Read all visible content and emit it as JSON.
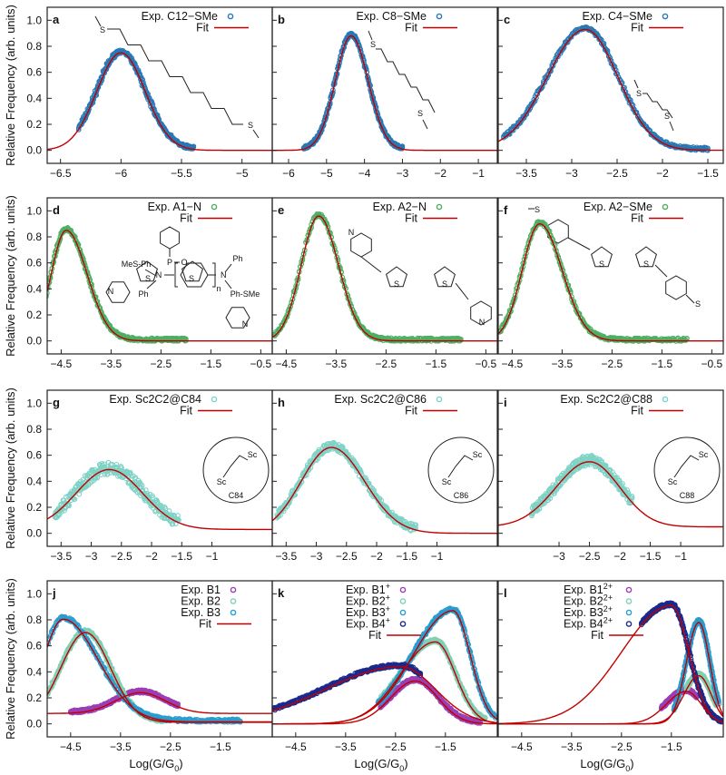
{
  "figure": {
    "ylabel": "Relative Frequency (arb. units)",
    "xlabel_main": "Log(G/G",
    "xlabel_sub": "0",
    "xlabel_end": ")",
    "yticks": [
      0.0,
      0.2,
      0.4,
      0.6,
      0.8,
      1.0
    ],
    "ytick_labels": [
      "0.0",
      "0.2",
      "0.4",
      "0.6",
      "0.8",
      "1.0"
    ],
    "ylim": [
      -0.1,
      1.1
    ],
    "fit_label": "Fit",
    "fit_color": "#c00000"
  },
  "molecules": {
    "a": [
      "S",
      "S"
    ],
    "b": [
      "S",
      "S"
    ],
    "c": [
      "S",
      "S"
    ],
    "d": [
      "P",
      "O",
      "S",
      "S",
      "N",
      "N"
    ],
    "e": [
      "N",
      "S",
      "S",
      "N"
    ],
    "f": [
      "S",
      "S",
      "S",
      "S"
    ],
    "g": [
      "Sc",
      "Sc",
      "C84"
    ],
    "h": [
      "Sc",
      "Sc",
      "C86"
    ],
    "i": [
      "Sc",
      "Sc",
      "C88"
    ],
    "j": [
      "MeS-Ph",
      "N",
      "Ph",
      "n",
      "N",
      "Ph",
      "Ph-SMe"
    ]
  },
  "chart_data": [
    {
      "panel": "a",
      "type": "scatter",
      "xlim": [
        -6.61,
        -4.75
      ],
      "xticks": [
        -6.5,
        -6,
        -5.5,
        -5
      ],
      "xtick_labels": [
        "−6.5",
        "−6",
        "−5.5",
        "−5"
      ],
      "series": [
        {
          "name": "Exp. C12−SMe",
          "sup": "",
          "color": "#2878b5",
          "A": 0.75,
          "mu": -6.0,
          "sL": 0.2,
          "sR": 0.2,
          "off": 0.0,
          "data_range": [
            -6.35,
            -5.4
          ]
        }
      ]
    },
    {
      "panel": "b",
      "type": "scatter",
      "xlim": [
        -6.43,
        -0.5
      ],
      "xticks": [
        -6,
        -5,
        -4,
        -3,
        -2,
        -1
      ],
      "xtick_labels": [
        "−6",
        "−5",
        "−4",
        "−3",
        "−2",
        "−1"
      ],
      "series": [
        {
          "name": "Exp. C8−SMe",
          "sup": "",
          "color": "#2878b5",
          "A": 0.88,
          "mu": -4.35,
          "sL": 0.42,
          "sR": 0.45,
          "off": 0.0,
          "data_range": [
            -5.6,
            -3.0
          ]
        }
      ]
    },
    {
      "panel": "c",
      "type": "scatter",
      "xlim": [
        -3.81,
        -1.33
      ],
      "xticks": [
        -3.5,
        -3,
        -2.5,
        -2,
        -1.5
      ],
      "xtick_labels": [
        "−3.5",
        "−3",
        "−2.5",
        "−2",
        "−1.5"
      ],
      "series": [
        {
          "name": "Exp. C4−SMe",
          "sup": "",
          "color": "#2878b5",
          "A": 0.93,
          "mu": -2.85,
          "sL": 0.42,
          "sR": 0.36,
          "off": 0.0,
          "data_range": [
            -3.75,
            -1.5
          ]
        }
      ]
    },
    {
      "panel": "d",
      "type": "scatter",
      "xlim": [
        -4.78,
        -0.27
      ],
      "xticks": [
        -4.5,
        -3.5,
        -2.5,
        -1.5,
        -0.5
      ],
      "xtick_labels": [
        "−4.5",
        "−3.5",
        "−2.5",
        "−1.5",
        "−0.5"
      ],
      "series": [
        {
          "name": "Exp. A1−N",
          "sup": "",
          "color": "#4caf64",
          "A": 0.85,
          "mu": -4.4,
          "sL": 0.3,
          "sR": 0.42,
          "off": 0.0,
          "data_range": [
            -4.8,
            -2.0
          ]
        }
      ]
    },
    {
      "panel": "e",
      "type": "scatter",
      "xlim": [
        -4.78,
        -0.27
      ],
      "xticks": [
        -4.5,
        -3.5,
        -2.5,
        -1.5,
        -0.5
      ],
      "xtick_labels": [
        "−4.5",
        "−3.5",
        "−2.5",
        "−1.5",
        "−0.5"
      ],
      "series": [
        {
          "name": "Exp. A2−N",
          "sup": "",
          "color": "#4caf64",
          "A": 0.96,
          "mu": -3.85,
          "sL": 0.35,
          "sR": 0.4,
          "off": 0.0,
          "data_range": [
            -4.75,
            -1.0
          ]
        }
      ]
    },
    {
      "panel": "f",
      "type": "scatter",
      "xlim": [
        -4.78,
        -0.27
      ],
      "xticks": [
        -4.5,
        -3.5,
        -2.5,
        -1.5,
        -0.5
      ],
      "xtick_labels": [
        "−4.5",
        "−3.5",
        "−2.5",
        "−1.5",
        "−0.5"
      ],
      "series": [
        {
          "name": "Exp. A2−SMe",
          "sup": "",
          "color": "#4caf64",
          "A": 0.9,
          "mu": -3.95,
          "sL": 0.35,
          "sR": 0.45,
          "off": 0.0,
          "data_range": [
            -4.75,
            -1.0
          ]
        }
      ]
    },
    {
      "panel": "g",
      "type": "scatter",
      "xlim": [
        -3.73,
        0.0
      ],
      "xticks": [
        -3.5,
        -3,
        -2.5,
        -2,
        -1.5,
        -1
      ],
      "xtick_labels": [
        "−3.5",
        "−3",
        "−2.5",
        "−2",
        "−1.5",
        "−1"
      ],
      "series": [
        {
          "name": "Exp. Sc2C2@C84",
          "sup": "",
          "color": "#7fd3c6",
          "A": 0.46,
          "mu": -2.7,
          "sL": 0.55,
          "sR": 0.55,
          "off": 0.03,
          "data_range": [
            -3.6,
            -1.55
          ],
          "noise": 0.05
        }
      ]
    },
    {
      "panel": "h",
      "type": "scatter",
      "xlim": [
        -3.73,
        0.0
      ],
      "xticks": [
        -3.5,
        -3,
        -2.5,
        -2,
        -1.5,
        -1
      ],
      "xtick_labels": [
        "−3.5",
        "−3",
        "−2.5",
        "−2",
        "−1.5",
        "−1"
      ],
      "series": [
        {
          "name": "Exp. Sc2C2@C86",
          "sup": "",
          "color": "#7fd3c6",
          "A": 0.66,
          "mu": -2.75,
          "sL": 0.5,
          "sR": 0.55,
          "off": 0.0,
          "data_range": [
            -3.65,
            -1.35
          ],
          "noise": 0.03
        }
      ]
    },
    {
      "panel": "i",
      "type": "scatter",
      "xlim": [
        -4.0,
        -0.3
      ],
      "xticks": [
        -3,
        -2.5,
        -2,
        -1.5,
        -1
      ],
      "xtick_labels": [
        "−3",
        "−2.5",
        "−2",
        "−1.5",
        "−1"
      ],
      "series": [
        {
          "name": "Exp. Sc2C2@C88",
          "sup": "",
          "color": "#7fd3c6",
          "A": 0.5,
          "mu": -2.5,
          "sL": 0.55,
          "sR": 0.5,
          "off": 0.05,
          "data_range": [
            -3.45,
            -1.8
          ],
          "noise": 0.04
        }
      ]
    },
    {
      "panel": "j",
      "type": "scatter",
      "xlim": [
        -4.97,
        -0.46
      ],
      "xticks": [
        -4.5,
        -3.5,
        -2.5,
        -1.5
      ],
      "xtick_labels": [
        "−4.5",
        "−3.5",
        "−2.5",
        "−1.5"
      ],
      "series": [
        {
          "name": "Exp. B1",
          "sup": "",
          "color": "#9b3fb5",
          "A": 0.16,
          "mu": -3.1,
          "sL": 0.5,
          "sR": 0.5,
          "off": 0.08,
          "data_range": [
            -4.5,
            -2.35
          ]
        },
        {
          "name": "Exp. B2",
          "sup": "",
          "color": "#82d0b4",
          "A": 0.69,
          "mu": -4.2,
          "sL": 0.5,
          "sR": 0.5,
          "off": 0.012,
          "data_range": [
            -4.97,
            -2.6
          ]
        },
        {
          "name": "Exp. B3",
          "sup": "",
          "color": "#2a9ccf",
          "A": 0.79,
          "mu": -4.65,
          "sL": 0.4,
          "sR": 0.7,
          "off": 0.015,
          "data_range": [
            -4.95,
            -1.1
          ]
        }
      ]
    },
    {
      "panel": "k",
      "type": "scatter",
      "xlim": [
        -4.97,
        -0.46
      ],
      "xticks": [
        -4.5,
        -3.5,
        -2.5,
        -1.5
      ],
      "xtick_labels": [
        "−4.5",
        "−3.5",
        "−2.5",
        "−1.5"
      ],
      "series": [
        {
          "name": "Exp. B1",
          "sup": "+",
          "color": "#9b3fb5",
          "A": 0.33,
          "mu": -2.1,
          "sL": 0.5,
          "sR": 0.45,
          "off": 0.0,
          "data_range": [
            -2.8,
            -0.8
          ]
        },
        {
          "name": "Exp. B2",
          "sup": "+",
          "color": "#82d0b4",
          "A": 0.63,
          "mu": -1.7,
          "sL": 0.7,
          "sR": 0.4,
          "off": 0.0,
          "data_range": [
            -2.8,
            -0.7
          ]
        },
        {
          "name": "Exp. B3",
          "sup": "+",
          "color": "#2a9ccf",
          "A": 0.87,
          "mu": -1.35,
          "sL": 0.8,
          "sR": 0.35,
          "off": 0.0,
          "data_range": [
            -2.85,
            -0.5
          ]
        },
        {
          "name": "Exp. B4",
          "sup": "+",
          "color": "#1b2a8c",
          "A": 0.44,
          "mu": -2.4,
          "sL": 1.5,
          "sR": 0.7,
          "off": 0.0,
          "data_range": [
            -4.95,
            -2.0
          ]
        }
      ]
    },
    {
      "panel": "l",
      "type": "scatter",
      "xlim": [
        -4.97,
        -0.46
      ],
      "xticks": [
        -4.5,
        -3.5,
        -2.5,
        -1.5
      ],
      "xtick_labels": [
        "−4.5",
        "−3.5",
        "−2.5",
        "−1.5"
      ],
      "series": [
        {
          "name": "Exp. B1",
          "sup": "2+",
          "color": "#9b3fb5",
          "A": 0.25,
          "mu": -1.2,
          "sL": 0.4,
          "sR": 0.3,
          "off": 0.0,
          "data_range": [
            -1.7,
            -1.0
          ]
        },
        {
          "name": "Exp. B2",
          "sup": "2+",
          "color": "#82d0b4",
          "A": 0.37,
          "mu": -0.95,
          "sL": 0.3,
          "sR": 0.25,
          "off": 0.0,
          "data_range": [
            -1.2,
            -0.6
          ]
        },
        {
          "name": "Exp. B3",
          "sup": "2+",
          "color": "#2a9ccf",
          "A": 0.78,
          "mu": -0.95,
          "sL": 0.25,
          "sR": 0.22,
          "off": 0.0,
          "data_range": [
            -1.45,
            -0.55
          ]
        },
        {
          "name": "Exp. B4",
          "sup": "2+",
          "color": "#1b2a8c",
          "A": 0.91,
          "mu": -1.5,
          "sL": 1.0,
          "sR": 0.35,
          "off": 0.0,
          "data_range": [
            -2.1,
            -0.5
          ]
        }
      ]
    }
  ]
}
